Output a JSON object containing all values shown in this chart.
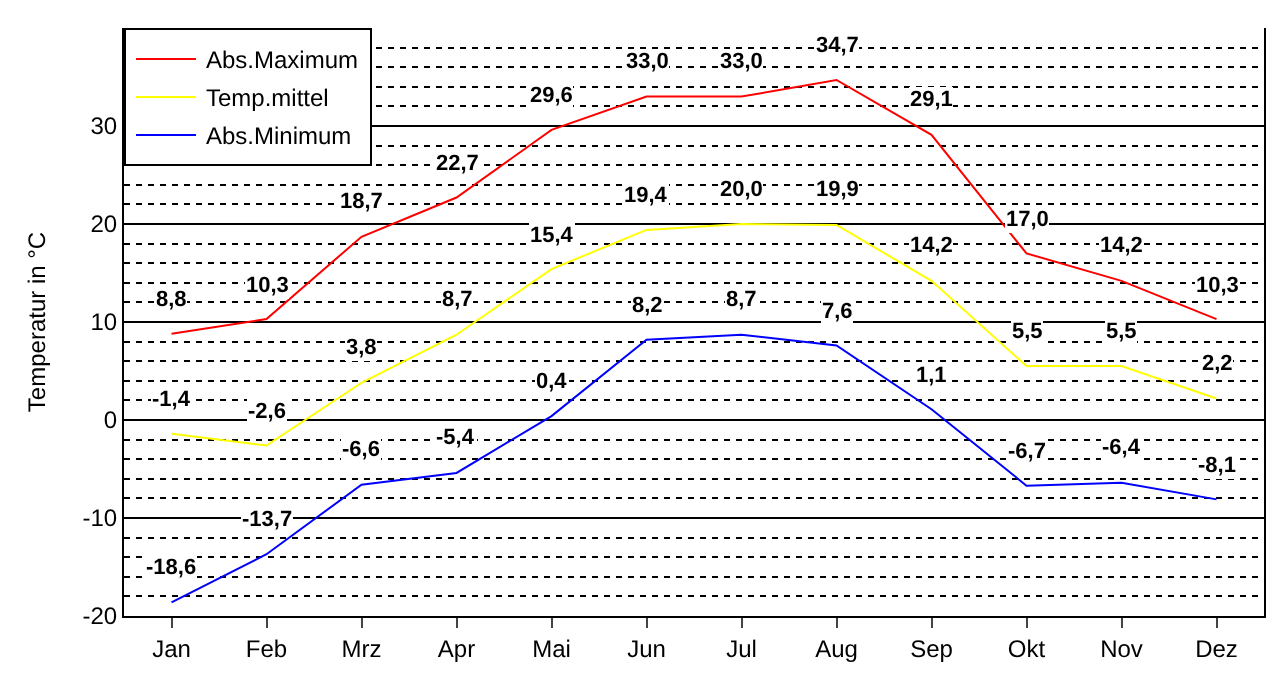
{
  "chart_data": {
    "type": "line",
    "ylabel": "Temperatur in °C",
    "categories": [
      "Jan",
      "Feb",
      "Mrz",
      "Apr",
      "Mai",
      "Jun",
      "Jul",
      "Aug",
      "Sep",
      "Okt",
      "Nov",
      "Dez"
    ],
    "series": [
      {
        "name": "Abs.Maximum",
        "color": "#ff0000",
        "values": [
          8.8,
          10.3,
          18.7,
          22.7,
          29.6,
          33.0,
          33.0,
          34.7,
          29.1,
          17.0,
          14.2,
          10.3
        ],
        "value_labels": [
          "8,8",
          "10,3",
          "18,7",
          "22,7",
          "29,6",
          "33,0",
          "33,0",
          "34,7",
          "29,1",
          "17,0",
          "14,2",
          "10,3"
        ]
      },
      {
        "name": "Temp.mittel",
        "color": "#ffff00",
        "values": [
          -1.4,
          -2.6,
          3.8,
          8.7,
          15.4,
          19.4,
          20.0,
          19.9,
          14.2,
          5.5,
          5.5,
          2.2
        ],
        "value_labels": [
          "-1,4",
          "-2,6",
          "3,8",
          "8,7",
          "15,4",
          "19,4",
          "20,0",
          "19,9",
          "14,2",
          "5,5",
          "5,5",
          "2,2"
        ]
      },
      {
        "name": "Abs.Minimum",
        "color": "#0000ff",
        "values": [
          -18.6,
          -13.7,
          -6.6,
          -5.4,
          0.4,
          8.2,
          8.7,
          7.6,
          1.1,
          -6.7,
          -6.4,
          -8.1
        ],
        "value_labels": [
          "-18,6",
          "-13,7",
          "-6,6",
          "-5,4",
          "0,4",
          "8,2",
          "8,7",
          "7,6",
          "1,1",
          "-6,7",
          "-6,4",
          "-8,1"
        ]
      }
    ],
    "ylim": [
      -20,
      40
    ],
    "yticks": [
      -20,
      -10,
      0,
      10,
      20,
      30
    ],
    "grid": "y",
    "legend": "top left",
    "marker": "none",
    "line_style": "solid"
  }
}
